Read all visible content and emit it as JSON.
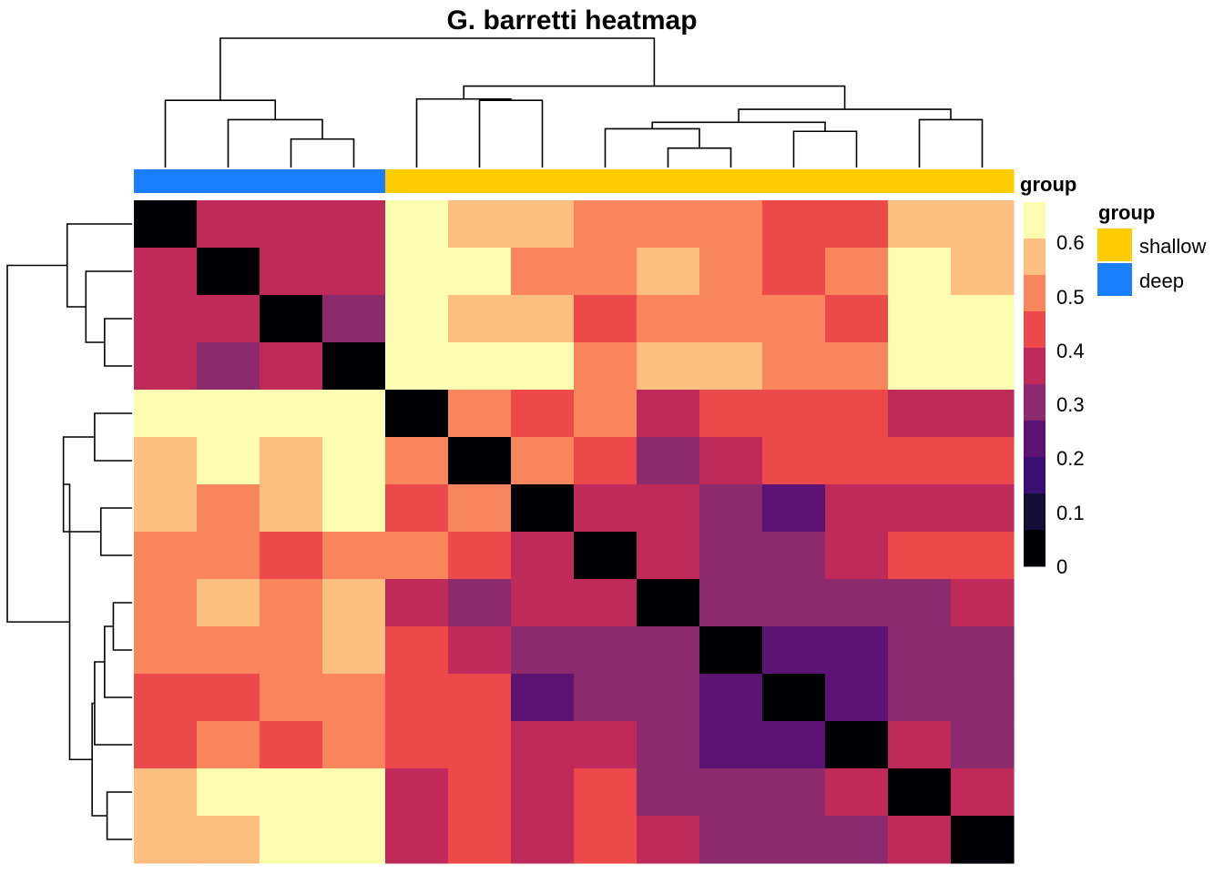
{
  "chart_data": {
    "type": "heatmap",
    "title": "G. barretti heatmap",
    "n": 14,
    "column_group": [
      "deep",
      "deep",
      "deep",
      "deep",
      "shallow",
      "shallow",
      "shallow",
      "shallow",
      "shallow",
      "shallow",
      "shallow",
      "shallow",
      "shallow",
      "shallow"
    ],
    "matrix": [
      [
        0.0,
        0.35,
        0.35,
        0.35,
        0.65,
        0.55,
        0.55,
        0.5,
        0.5,
        0.5,
        0.45,
        0.45,
        0.55,
        0.55
      ],
      [
        0.35,
        0.0,
        0.35,
        0.35,
        0.65,
        0.65,
        0.5,
        0.5,
        0.55,
        0.5,
        0.45,
        0.5,
        0.65,
        0.55
      ],
      [
        0.35,
        0.35,
        0.0,
        0.3,
        0.65,
        0.55,
        0.55,
        0.45,
        0.5,
        0.5,
        0.5,
        0.45,
        0.65,
        0.65
      ],
      [
        0.35,
        0.3,
        0.35,
        0.0,
        0.65,
        0.65,
        0.65,
        0.5,
        0.55,
        0.55,
        0.5,
        0.5,
        0.65,
        0.65
      ],
      [
        0.65,
        0.65,
        0.65,
        0.65,
        0.0,
        0.5,
        0.45,
        0.5,
        0.35,
        0.45,
        0.45,
        0.45,
        0.35,
        0.35
      ],
      [
        0.55,
        0.65,
        0.55,
        0.65,
        0.5,
        0.0,
        0.5,
        0.45,
        0.3,
        0.35,
        0.45,
        0.45,
        0.45,
        0.45
      ],
      [
        0.55,
        0.5,
        0.55,
        0.65,
        0.45,
        0.5,
        0.0,
        0.35,
        0.35,
        0.3,
        0.25,
        0.35,
        0.35,
        0.35
      ],
      [
        0.5,
        0.5,
        0.45,
        0.5,
        0.5,
        0.45,
        0.35,
        0.0,
        0.35,
        0.3,
        0.3,
        0.35,
        0.45,
        0.45
      ],
      [
        0.5,
        0.55,
        0.5,
        0.55,
        0.35,
        0.3,
        0.35,
        0.35,
        0.0,
        0.3,
        0.3,
        0.3,
        0.3,
        0.35
      ],
      [
        0.5,
        0.5,
        0.5,
        0.55,
        0.45,
        0.35,
        0.3,
        0.3,
        0.3,
        0.0,
        0.25,
        0.25,
        0.3,
        0.3
      ],
      [
        0.45,
        0.45,
        0.5,
        0.5,
        0.45,
        0.45,
        0.25,
        0.3,
        0.3,
        0.25,
        0.0,
        0.25,
        0.3,
        0.3
      ],
      [
        0.45,
        0.5,
        0.45,
        0.5,
        0.45,
        0.45,
        0.35,
        0.35,
        0.3,
        0.25,
        0.25,
        0.0,
        0.35,
        0.3
      ],
      [
        0.55,
        0.65,
        0.65,
        0.65,
        0.35,
        0.45,
        0.35,
        0.45,
        0.3,
        0.3,
        0.3,
        0.35,
        0.0,
        0.35
      ],
      [
        0.55,
        0.55,
        0.65,
        0.65,
        0.35,
        0.45,
        0.35,
        0.45,
        0.35,
        0.3,
        0.3,
        0.3,
        0.35,
        0.0
      ]
    ],
    "color_scale": [
      {
        "value": 0.0,
        "color": "#000004"
      },
      {
        "value": 0.1,
        "color": "#140e36"
      },
      {
        "value": 0.2,
        "color": "#3b0f70"
      },
      {
        "value": 0.25,
        "color": "#5c1374"
      },
      {
        "value": 0.3,
        "color": "#8c2a6e"
      },
      {
        "value": 0.35,
        "color": "#c02a5a"
      },
      {
        "value": 0.45,
        "color": "#ec4a4a"
      },
      {
        "value": 0.5,
        "color": "#f8855c"
      },
      {
        "value": 0.55,
        "color": "#fcbf80"
      },
      {
        "value": 0.65,
        "color": "#fcfdb0"
      }
    ],
    "legend_ticks": [
      "0.6",
      "0.5",
      "0.4",
      "0.3",
      "0.2",
      "0.1",
      "0"
    ],
    "legend_title": "group",
    "annotation_title": "group",
    "groups": [
      {
        "name": "shallow",
        "color": "#ffcc00"
      },
      {
        "name": "deep",
        "color": "#1a7fff"
      }
    ],
    "col_dendrogram": [
      [
        2,
        3,
        0.22
      ],
      [
        1,
        -1,
        0.37
      ],
      [
        0,
        -2,
        0.52
      ],
      [
        8,
        9,
        0.15
      ],
      [
        7,
        -4,
        0.3
      ],
      [
        10,
        11,
        0.28
      ],
      [
        -5,
        -6,
        0.35
      ],
      [
        5,
        6,
        0.52
      ],
      [
        12,
        13,
        0.37
      ],
      [
        -7,
        -9,
        0.45
      ],
      [
        4,
        -8,
        0.53
      ],
      [
        -10,
        -11,
        0.63
      ],
      [
        -3,
        -12,
        1.0
      ]
    ],
    "row_dendrogram": [
      [
        2,
        3,
        0.22
      ],
      [
        1,
        -1,
        0.37
      ],
      [
        0,
        -2,
        0.52
      ],
      [
        4,
        5,
        0.3
      ],
      [
        6,
        7,
        0.25
      ],
      [
        -4,
        -5,
        0.55
      ],
      [
        8,
        9,
        0.15
      ],
      [
        -7,
        10,
        0.22
      ],
      [
        11,
        -8,
        0.3
      ],
      [
        12,
        13,
        0.2
      ],
      [
        -9,
        -10,
        0.32
      ],
      [
        -6,
        -11,
        0.5
      ],
      [
        -3,
        -12,
        1.0
      ]
    ]
  }
}
